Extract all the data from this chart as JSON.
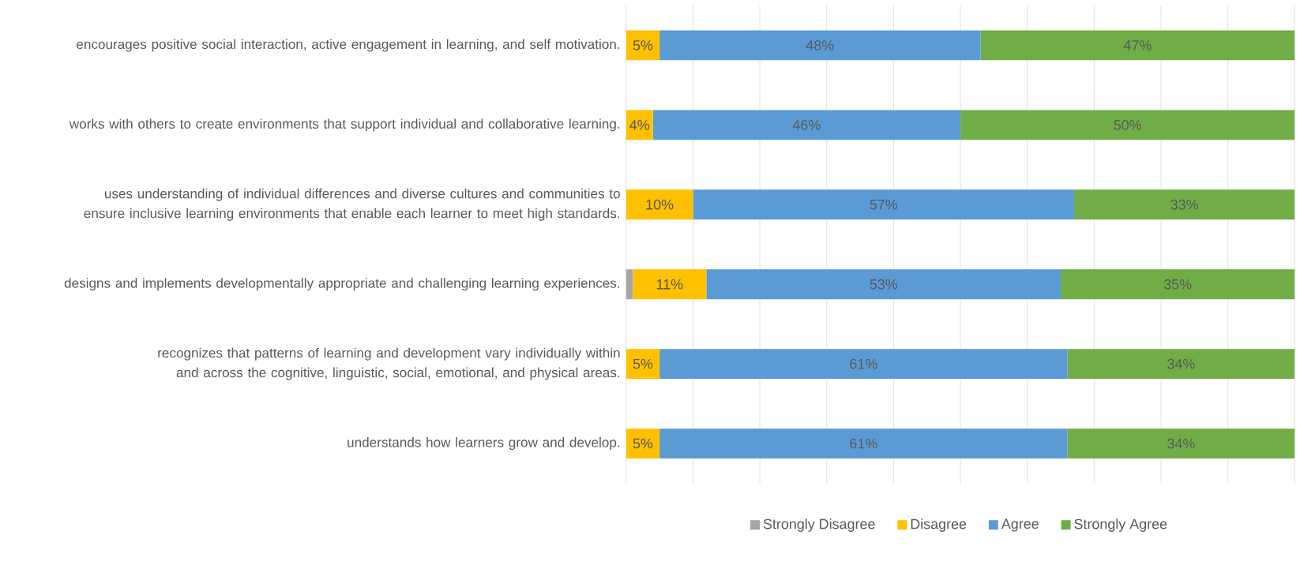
{
  "chart_data": {
    "type": "bar",
    "orientation": "horizontal",
    "stacked": true,
    "categories": [
      "encourages positive social interaction, active engagement in learning, and self motivation.",
      "works with others to create environments that support individual and collaborative learning.",
      "uses understanding of individual differences and diverse cultures and communities to ensure inclusive learning environments that enable each learner to meet high standards.",
      "designs and implements developmentally appropriate and challenging learning experiences.",
      "recognizes that patterns of learning and development vary individually within and across the cognitive, linguistic, social, emotional, and physical areas.",
      "understands how learners grow and develop."
    ],
    "series": [
      {
        "name": "Strongly Disagree",
        "color": "#a5a5a5",
        "values": [
          0,
          0,
          0,
          1,
          0,
          0
        ],
        "value_labels": [
          null,
          null,
          null,
          null,
          null,
          null
        ]
      },
      {
        "name": "Disagree",
        "color": "#ffc000",
        "values": [
          5,
          4,
          10,
          11,
          5,
          5
        ],
        "value_labels": [
          "5%",
          "4%",
          "10%",
          "11%",
          "5%",
          "5%"
        ]
      },
      {
        "name": "Agree",
        "color": "#5b9bd5",
        "values": [
          48,
          46,
          57,
          53,
          61,
          61
        ],
        "value_labels": [
          "48%",
          "46%",
          "57%",
          "53%",
          "61%",
          "61%"
        ]
      },
      {
        "name": "Strongly Agree",
        "color": "#70ad47",
        "values": [
          47,
          50,
          33,
          35,
          34,
          34
        ],
        "value_labels": [
          "47%",
          "50%",
          "33%",
          "35%",
          "34%",
          "34%"
        ]
      }
    ],
    "grid": "x",
    "legend": "bottom",
    "tick_labels": "y"
  }
}
